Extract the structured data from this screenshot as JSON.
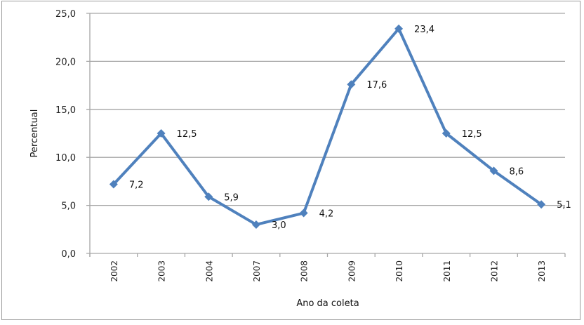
{
  "chart_data": {
    "type": "line",
    "title": "",
    "xlabel": "Ano da coleta",
    "ylabel": "Percentual",
    "categories": [
      "2002",
      "2003",
      "2004",
      "2007",
      "2008",
      "2009",
      "2010",
      "2011",
      "2012",
      "2013"
    ],
    "series": [
      {
        "name": "Percentual",
        "values": [
          7.2,
          12.5,
          5.9,
          3.0,
          4.2,
          17.6,
          23.4,
          12.5,
          8.6,
          5.1
        ],
        "data_labels": [
          "7,2",
          "12,5",
          "5,9",
          "3,0",
          "4,2",
          "17,6",
          "23,4",
          "12,5",
          "8,6",
          "5,1"
        ],
        "color": "#4F81BD",
        "marker": "diamond"
      }
    ],
    "ylim": [
      0,
      25
    ],
    "yticks": [
      0,
      5,
      10,
      15,
      20,
      25
    ],
    "ytick_labels": [
      "0,0",
      "5,0",
      "10,0",
      "15,0",
      "20,0",
      "25,0"
    ],
    "grid": true,
    "legend": "none"
  },
  "colors": {
    "series": "#4F81BD",
    "gridline": "#a6a6a6",
    "axis": "#a6a6a6",
    "border": "#9a9a9a"
  }
}
